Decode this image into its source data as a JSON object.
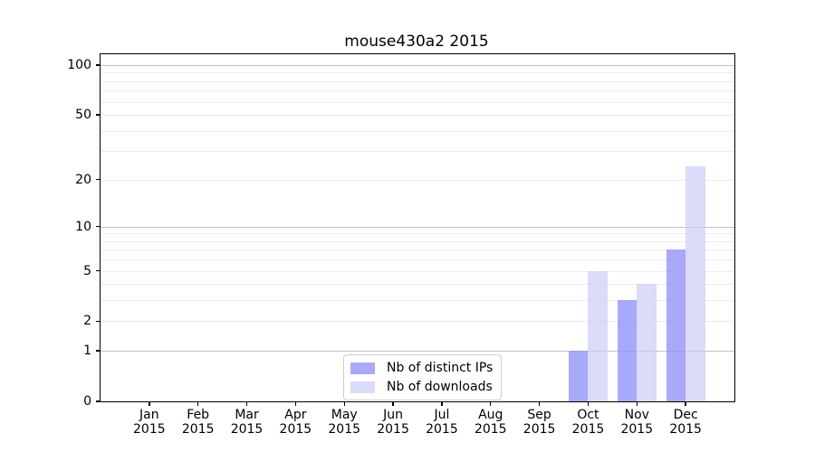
{
  "page": {
    "background": "#ffffff",
    "text_color": "#000000",
    "axis_color": "#000000"
  },
  "chart_data": {
    "type": "bar",
    "title": "mouse430a2 2015",
    "categories": [
      "Jan",
      "Feb",
      "Mar",
      "Apr",
      "May",
      "Jun",
      "Jul",
      "Aug",
      "Sep",
      "Oct",
      "Nov",
      "Dec"
    ],
    "x_year_label": "2015",
    "series": [
      {
        "name": "Nb of distinct IPs",
        "color": "rgba(140, 140, 248, 0.75)",
        "swatch_hex": "#aaaaf4",
        "values": [
          0,
          0,
          0,
          0,
          0,
          0,
          0,
          0,
          0,
          1,
          3,
          7
        ]
      },
      {
        "name": "Nb of downloads",
        "color": "rgba(202, 202, 248, 0.68)",
        "swatch_hex": "#dadaf9",
        "values": [
          0,
          0,
          0,
          0,
          0,
          0,
          0,
          0,
          0,
          5,
          4,
          24
        ]
      }
    ],
    "yscale": "log10(1+y)",
    "ylim": [
      0,
      116
    ],
    "yticks": [
      100,
      50,
      20,
      10,
      5,
      2,
      1,
      0
    ],
    "gridlines": {
      "major": [
        1,
        10,
        100
      ],
      "minor": [
        2,
        3,
        4,
        5,
        6,
        7,
        8,
        9,
        20,
        30,
        40,
        50,
        60,
        70,
        80,
        90
      ],
      "major_color": "#c3c3c3",
      "minor_color": "#ececec"
    },
    "grid": "on",
    "legend_position": "bottom-center",
    "xlabel": "",
    "ylabel": ""
  }
}
